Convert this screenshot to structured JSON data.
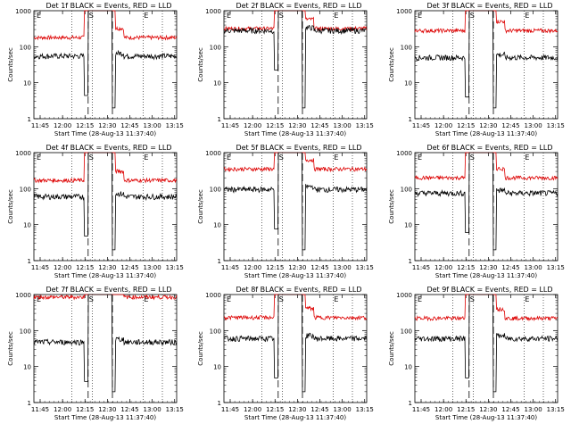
{
  "figure": {
    "xlabel": "Start Time (28-Aug-13 11:37:40)",
    "ylabel": "Counts/sec",
    "ylim": [
      1,
      1000
    ],
    "yscale": "log",
    "yticks": [
      "1",
      "10",
      "100",
      "1000"
    ],
    "xticks": [
      "11:45",
      "12:00",
      "12:15",
      "12:30",
      "12:45",
      "13:00",
      "13:15"
    ],
    "colors": {
      "events": "#000000",
      "lld": "#dd0000",
      "axis": "#000000"
    },
    "markers": {
      "S": "S",
      "E": "E"
    }
  },
  "chart_data": [
    {
      "type": "line",
      "title": "Det 1f BLACK = Events, RED = LLD",
      "series": [
        {
          "name": "Events",
          "level": 55
        },
        {
          "name": "LLD",
          "level": 180
        }
      ]
    },
    {
      "type": "line",
      "title": "Det 2f BLACK = Events, RED = LLD",
      "series": [
        {
          "name": "Events",
          "level": 280
        },
        {
          "name": "LLD",
          "level": 320
        }
      ]
    },
    {
      "type": "line",
      "title": "Det 3f BLACK = Events, RED = LLD",
      "series": [
        {
          "name": "Events",
          "level": 50
        },
        {
          "name": "LLD",
          "level": 280
        }
      ]
    },
    {
      "type": "line",
      "title": "Det 4f BLACK = Events, RED = LLD",
      "series": [
        {
          "name": "Events",
          "level": 60
        },
        {
          "name": "LLD",
          "level": 170
        }
      ]
    },
    {
      "type": "line",
      "title": "Det 5f BLACK = Events, RED = LLD",
      "series": [
        {
          "name": "Events",
          "level": 95
        },
        {
          "name": "LLD",
          "level": 350
        }
      ]
    },
    {
      "type": "line",
      "title": "Det 6f BLACK = Events, RED = LLD",
      "series": [
        {
          "name": "Events",
          "level": 75
        },
        {
          "name": "LLD",
          "level": 200
        }
      ]
    },
    {
      "type": "line",
      "title": "Det 7f BLACK = Events, RED = LLD",
      "series": [
        {
          "name": "Events",
          "level": 48
        },
        {
          "name": "LLD",
          "level": 850
        }
      ]
    },
    {
      "type": "line",
      "title": "Det 8f BLACK = Events, RED = LLD",
      "series": [
        {
          "name": "Events",
          "level": 60
        },
        {
          "name": "LLD",
          "level": 230
        }
      ]
    },
    {
      "type": "line",
      "title": "Det 9f BLACK = Events, RED = LLD",
      "series": [
        {
          "name": "Events",
          "level": 60
        },
        {
          "name": "LLD",
          "level": 220
        }
      ]
    }
  ]
}
